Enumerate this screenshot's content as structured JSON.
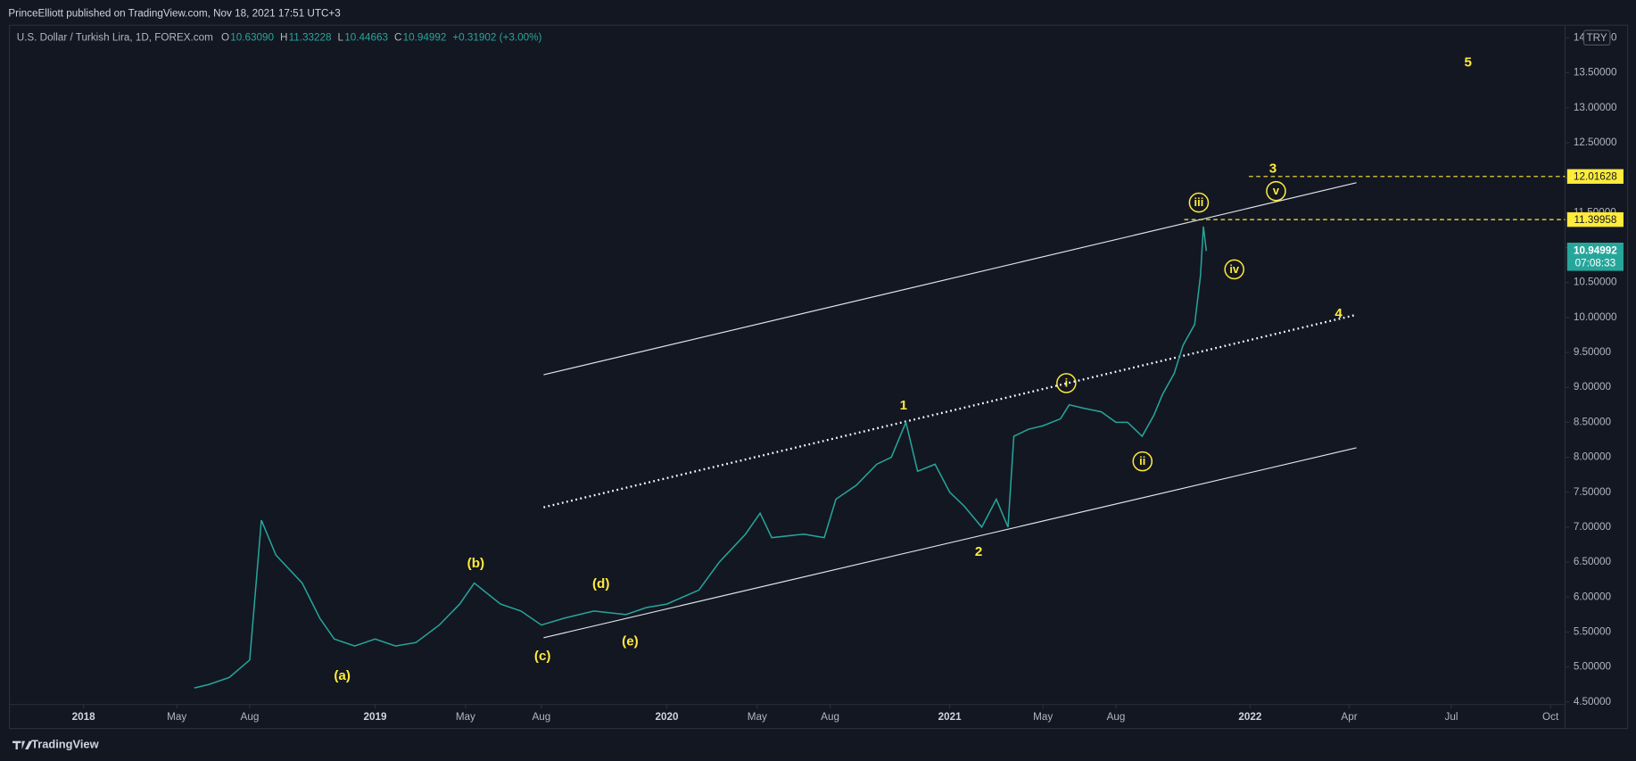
{
  "header": {
    "publisher": "PrinceElliott published on TradingView.com, Nov 18, 2021 17:51 UTC+3"
  },
  "legend": {
    "symbol": "U.S. Dollar / Turkish Lira, 1D, FOREX.com",
    "ohlc": [
      {
        "key": "O",
        "value": "10.63090"
      },
      {
        "key": "H",
        "value": "11.33228"
      },
      {
        "key": "L",
        "value": "10.44663"
      },
      {
        "key": "C",
        "value": "10.94992"
      }
    ],
    "change": "+0.31902 (+3.00%)"
  },
  "chart_data": {
    "type": "line",
    "color": "#26a69a",
    "currency": "TRY",
    "x": [
      2018.38,
      2018.43,
      2018.5,
      2018.57,
      2018.61,
      2018.66,
      2018.75,
      2018.81,
      2018.86,
      2018.93,
      2019.0,
      2019.07,
      2019.14,
      2019.22,
      2019.29,
      2019.34,
      2019.43,
      2019.5,
      2019.57,
      2019.65,
      2019.75,
      2019.86,
      2019.93,
      2020.0,
      2020.11,
      2020.18,
      2020.27,
      2020.32,
      2020.36,
      2020.47,
      2020.54,
      2020.58,
      2020.65,
      2020.72,
      2020.77,
      2020.82,
      2020.86,
      2020.92,
      2020.97,
      2021.02,
      2021.08,
      2021.13,
      2021.17,
      2021.19,
      2021.24,
      2021.29,
      2021.35,
      2021.38,
      2021.43,
      2021.49,
      2021.54,
      2021.58,
      2021.63,
      2021.67,
      2021.7,
      2021.74,
      2021.77,
      2021.81,
      2021.83,
      2021.84,
      2021.85
    ],
    "values": [
      4.7,
      4.75,
      4.85,
      5.1,
      7.1,
      6.6,
      6.2,
      5.7,
      5.4,
      5.3,
      5.4,
      5.3,
      5.35,
      5.6,
      5.9,
      6.2,
      5.9,
      5.8,
      5.6,
      5.7,
      5.8,
      5.75,
      5.85,
      5.9,
      6.1,
      6.5,
      6.9,
      7.2,
      6.85,
      6.9,
      6.85,
      7.4,
      7.6,
      7.9,
      8.0,
      8.5,
      7.8,
      7.9,
      7.5,
      7.3,
      7.0,
      7.4,
      7.0,
      8.3,
      8.4,
      8.45,
      8.55,
      8.75,
      8.7,
      8.65,
      8.5,
      8.5,
      8.3,
      8.6,
      8.9,
      9.2,
      9.6,
      9.9,
      10.6,
      11.3,
      10.95
    ],
    "xlim": [
      2017.746,
      2023.08
    ],
    "xticks": [
      {
        "value": 2018.0,
        "label": "2018"
      },
      {
        "value": 2018.32,
        "label": "May"
      },
      {
        "value": 2018.57,
        "label": "Aug"
      },
      {
        "value": 2019.0,
        "label": "2019"
      },
      {
        "value": 2019.31,
        "label": "May"
      },
      {
        "value": 2019.57,
        "label": "Aug"
      },
      {
        "value": 2020.0,
        "label": "2020"
      },
      {
        "value": 2020.31,
        "label": "May"
      },
      {
        "value": 2020.56,
        "label": "Aug"
      },
      {
        "value": 2020.97,
        "label": "2021"
      },
      {
        "value": 2021.29,
        "label": "May"
      },
      {
        "value": 2021.54,
        "label": "Aug"
      },
      {
        "value": 2022.0,
        "label": "2022"
      },
      {
        "value": 2022.34,
        "label": "Apr"
      },
      {
        "value": 2022.69,
        "label": "Jul"
      },
      {
        "value": 2023.03,
        "label": "Oct"
      }
    ],
    "ylim": [
      4.12,
      14.18
    ],
    "yticks": [
      {
        "value": 4.5,
        "label": "4.50000"
      },
      {
        "value": 5.0,
        "label": "5.00000"
      },
      {
        "value": 5.5,
        "label": "5.50000"
      },
      {
        "value": 6.0,
        "label": "6.00000"
      },
      {
        "value": 6.5,
        "label": "6.50000"
      },
      {
        "value": 7.0,
        "label": "7.00000"
      },
      {
        "value": 7.5,
        "label": "7.50000"
      },
      {
        "value": 8.0,
        "label": "8.00000"
      },
      {
        "value": 8.5,
        "label": "8.50000"
      },
      {
        "value": 9.0,
        "label": "9.00000"
      },
      {
        "value": 9.5,
        "label": "9.50000"
      },
      {
        "value": 10.0,
        "label": "10.00000"
      },
      {
        "value": 10.5,
        "label": "10.50000"
      },
      {
        "value": 11.0,
        "label": "11.00000"
      },
      {
        "value": 11.5,
        "label": "11.50000"
      },
      {
        "value": 12.0,
        "label": "12.00000"
      },
      {
        "value": 12.5,
        "label": "12.50000"
      },
      {
        "value": 13.0,
        "label": "13.00000"
      },
      {
        "value": 13.5,
        "label": "13.50000"
      },
      {
        "value": 14.0,
        "label": "14.00000"
      }
    ],
    "price_levels": [
      12.01628,
      11.39958
    ],
    "last_price": 10.94992,
    "countdown": "07:08:33",
    "waves": [
      "5",
      "3",
      "4",
      "1",
      "2",
      "(a)",
      "(b)",
      "(c)",
      "(d)",
      "(e)"
    ],
    "circled_waves": [
      "iii",
      "v",
      "iv",
      "i",
      "ii"
    ]
  },
  "footer": {
    "brand": "TradingView"
  }
}
